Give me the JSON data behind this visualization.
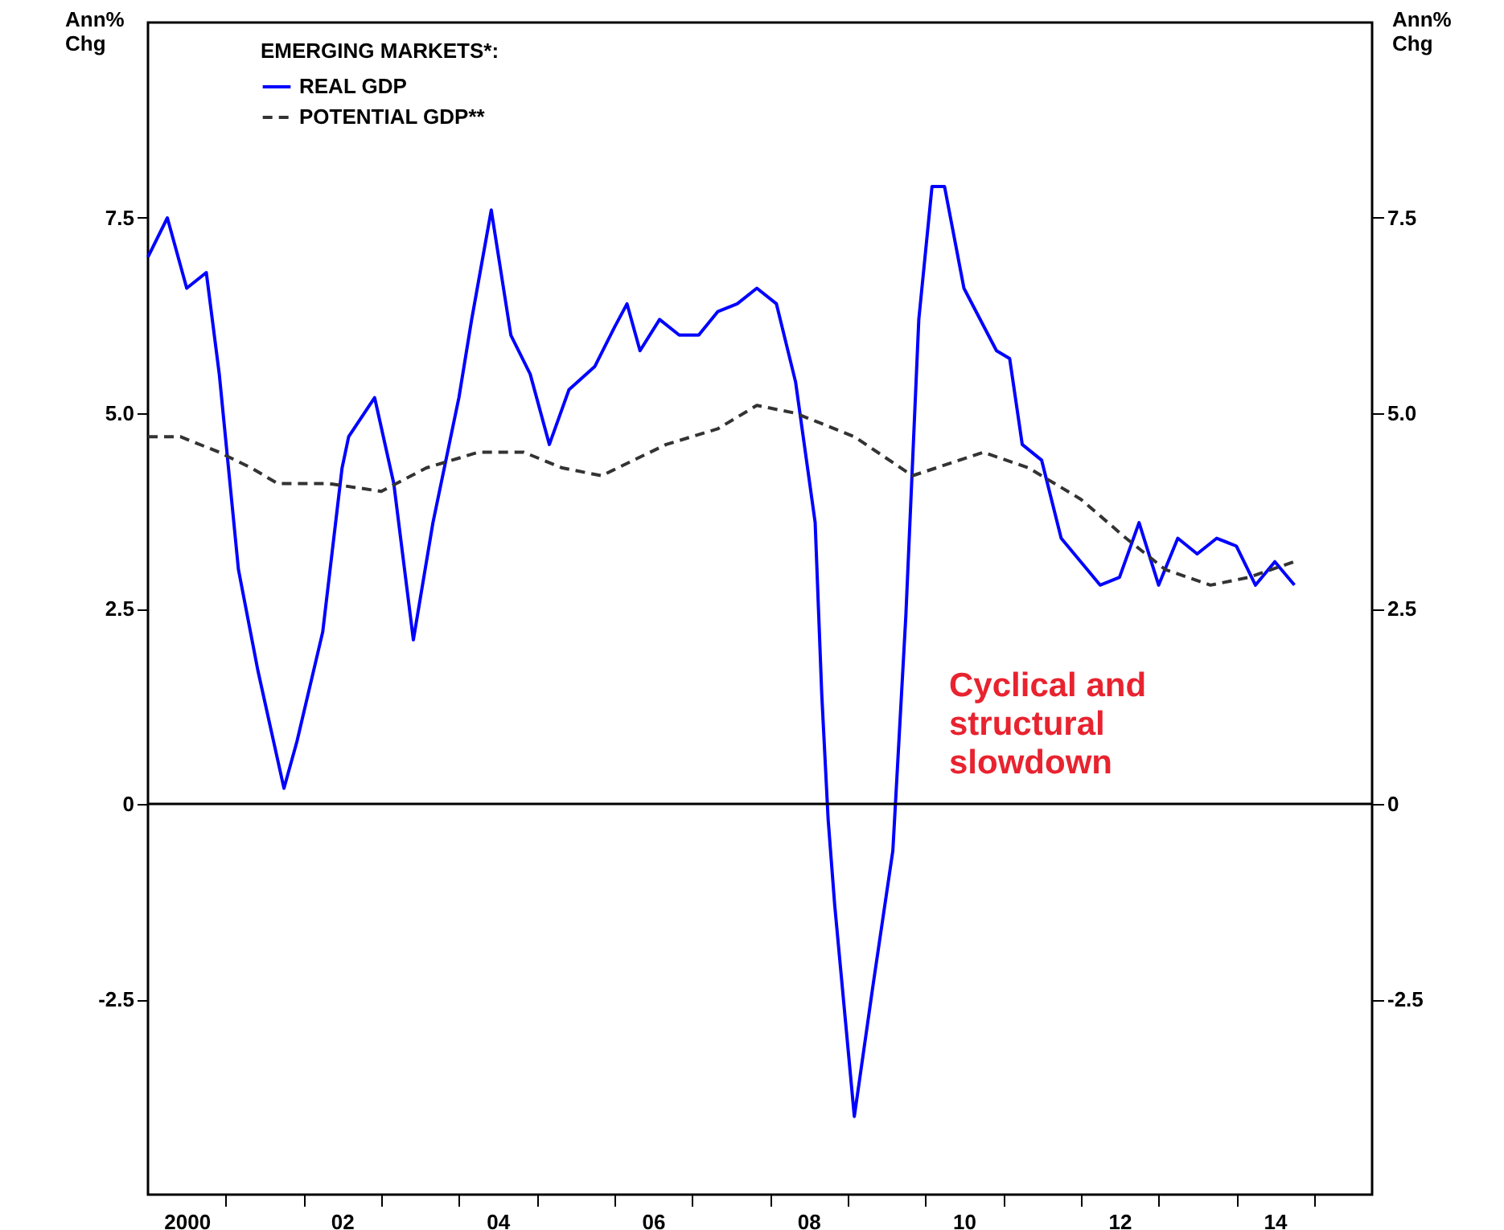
{
  "chart_data": {
    "type": "line",
    "legend_title": "EMERGING MARKETS*:",
    "ylabel": "Ann%\nChg",
    "y2label": "Ann%\nChg",
    "series": [
      {
        "name": "REAL GDP",
        "color": "#0000ff",
        "line_style": "solid",
        "x": [
          "2000-01",
          "2000-04",
          "2000-07",
          "2000-10",
          "2000-12",
          "2001-03",
          "2001-06",
          "2001-10",
          "2001-12",
          "2002-04",
          "2002-07",
          "2002-08",
          "2002-12",
          "2003-03",
          "2003-06",
          "2003-09",
          "2004-01",
          "2004-03",
          "2004-06",
          "2004-09",
          "2004-12",
          "2005-03",
          "2005-06",
          "2005-10",
          "2006-01",
          "2006-03",
          "2006-05",
          "2006-08",
          "2006-11",
          "2007-02",
          "2007-05",
          "2007-08",
          "2007-11",
          "2008-02",
          "2008-05",
          "2008-08",
          "2008-09",
          "2008-10",
          "2008-11",
          "2009-02",
          "2009-05",
          "2009-08",
          "2009-10",
          "2009-12",
          "2010-02",
          "2010-04",
          "2010-07",
          "2010-12",
          "2011-02",
          "2011-04",
          "2011-07",
          "2011-10",
          "2012-04",
          "2012-07",
          "2012-10",
          "2013-01",
          "2013-04",
          "2013-07",
          "2013-10",
          "2014-01",
          "2014-04",
          "2014-07",
          "2014-10"
        ],
        "values": [
          7.0,
          7.5,
          6.6,
          6.8,
          5.5,
          3.0,
          1.7,
          0.2,
          0.8,
          2.2,
          4.3,
          4.7,
          5.2,
          4.1,
          2.1,
          3.6,
          5.2,
          6.2,
          7.6,
          6.0,
          5.5,
          4.6,
          5.3,
          5.6,
          6.1,
          6.4,
          5.8,
          6.2,
          6.0,
          6.0,
          6.3,
          6.4,
          6.6,
          6.4,
          5.4,
          3.6,
          1.4,
          -0.2,
          -1.3,
          -4.0,
          -2.3,
          -0.6,
          2.4,
          6.2,
          7.9,
          7.9,
          6.6,
          5.8,
          5.7,
          4.6,
          4.4,
          3.4,
          2.8,
          2.9,
          3.6,
          2.8,
          3.4,
          3.2,
          3.4,
          3.3,
          2.8,
          3.1,
          2.8
        ]
      },
      {
        "name": "POTENTIAL GDP**",
        "color": "#333333",
        "line_style": "dashed",
        "x": [
          "2000-01",
          "2000-06",
          "2000-12",
          "2001-05",
          "2001-09",
          "2002-05",
          "2003-01",
          "2003-08",
          "2004-04",
          "2004-11",
          "2005-05",
          "2005-11",
          "2006-09",
          "2007-05",
          "2007-11",
          "2008-05",
          "2009-02",
          "2009-11",
          "2010-10",
          "2011-05",
          "2011-07",
          "2012-01",
          "2012-08",
          "2013-02",
          "2013-09",
          "2014-03",
          "2014-10"
        ],
        "values": [
          4.7,
          4.7,
          4.5,
          4.3,
          4.1,
          4.1,
          4.0,
          4.3,
          4.5,
          4.5,
          4.3,
          4.2,
          4.6,
          4.8,
          5.1,
          5.0,
          4.7,
          4.2,
          4.5,
          4.3,
          4.2,
          3.9,
          3.4,
          3.0,
          2.8,
          2.9,
          3.1
        ]
      }
    ],
    "xlim": [
      "2000-01",
      "2015-10"
    ],
    "xticks": [
      {
        "value": "2000-07",
        "label": "2000"
      },
      {
        "value": "2001",
        "label": null
      },
      {
        "value": "2002",
        "label": null
      },
      {
        "value": "2002-07",
        "label": "02"
      },
      {
        "value": "2003",
        "label": null
      },
      {
        "value": "2004",
        "label": null
      },
      {
        "value": "2004-07",
        "label": "04"
      },
      {
        "value": "2005",
        "label": null
      },
      {
        "value": "2006",
        "label": null
      },
      {
        "value": "2006-07",
        "label": "06"
      },
      {
        "value": "2007",
        "label": null
      },
      {
        "value": "2008",
        "label": null
      },
      {
        "value": "2008-07",
        "label": "08"
      },
      {
        "value": "2009",
        "label": null
      },
      {
        "value": "2010",
        "label": null
      },
      {
        "value": "2010-07",
        "label": "10"
      },
      {
        "value": "2011",
        "label": null
      },
      {
        "value": "2012",
        "label": null
      },
      {
        "value": "2012-07",
        "label": "12"
      },
      {
        "value": "2013",
        "label": null
      },
      {
        "value": "2014",
        "label": null
      },
      {
        "value": "2014-07",
        "label": "14"
      },
      {
        "value": "2015",
        "label": null
      }
    ],
    "ylim": [
      -5,
      10
    ],
    "yticks": [
      {
        "value": -2.5,
        "label": "-2.5"
      },
      {
        "value": 0,
        "label": "0"
      },
      {
        "value": 2.5,
        "label": "2.5"
      },
      {
        "value": 5,
        "label": "5.0"
      },
      {
        "value": 7.5,
        "label": "7.5"
      }
    ],
    "y2lim": [
      -5,
      10
    ],
    "y2ticks": [
      {
        "value": -2.5,
        "label": "-2.5"
      },
      {
        "value": 0,
        "label": "0"
      },
      {
        "value": 2.5,
        "label": "2.5"
      },
      {
        "value": 5,
        "label": "5.0"
      },
      {
        "value": 7.5,
        "label": "7.5"
      }
    ],
    "ref_lines": [
      {
        "axis": "y",
        "value": 0,
        "color": "#000000"
      }
    ],
    "annotations": [
      "Cyclical and\nstructural\nslowdown"
    ],
    "legend": "top left",
    "grid": false
  }
}
